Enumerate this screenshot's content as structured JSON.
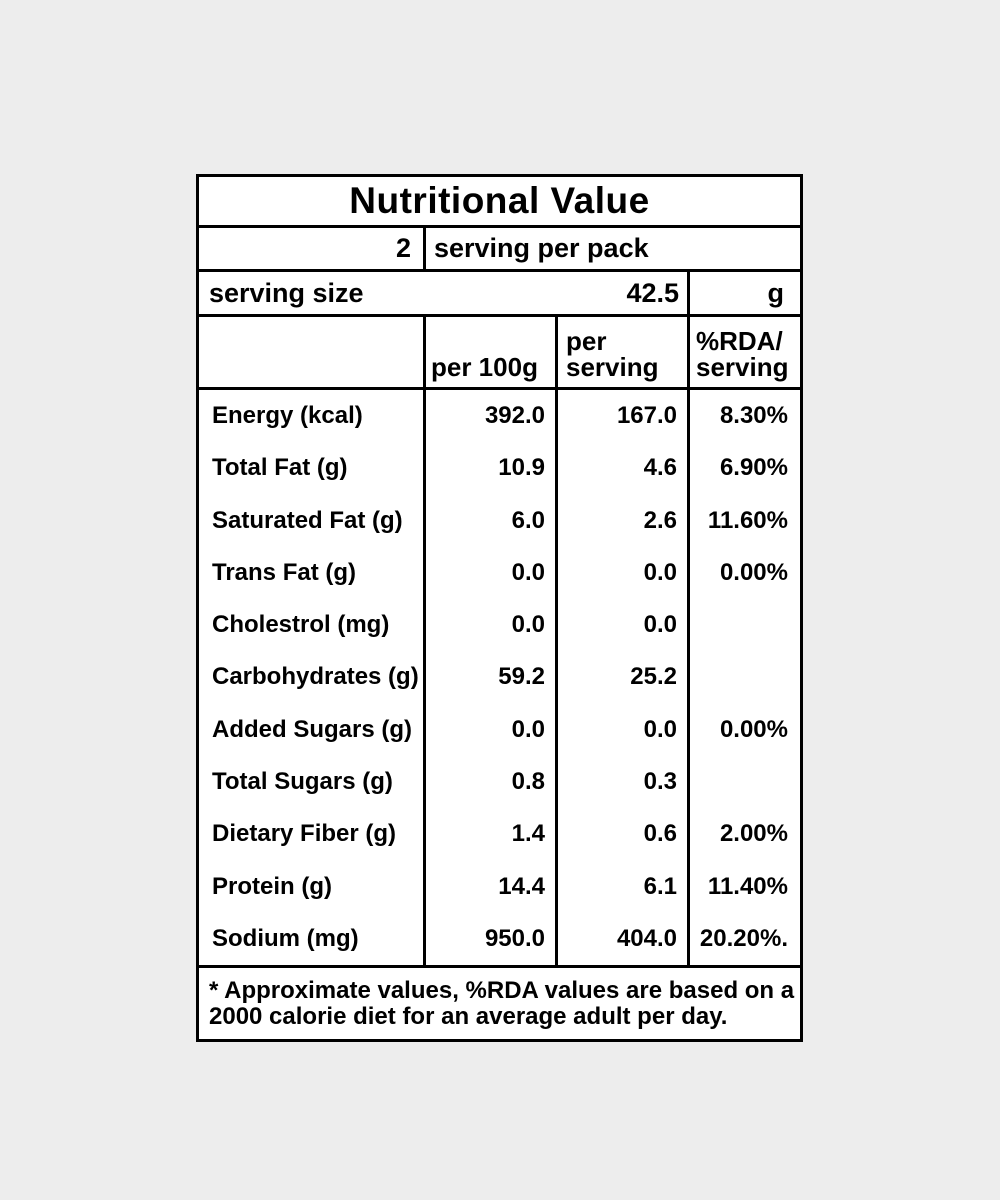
{
  "colors": {
    "background": "#ededed",
    "table_background": "#ffffff",
    "border": "#000000",
    "text": "#000000"
  },
  "label": {
    "title": "Nutritional Value",
    "pack": {
      "count": "2",
      "text": "serving per pack"
    },
    "serving_size": {
      "text": "serving size",
      "value": "42.5",
      "unit": "g"
    },
    "columns": {
      "per_100g": "per 100g",
      "per_serving_line1": "per",
      "per_serving_line2": "serving",
      "rda_line1": "%RDA/",
      "rda_line2": "serving"
    },
    "rows": [
      {
        "name": "Energy (kcal)",
        "per_100g": "392.0",
        "per_serving": "167.0",
        "rda": "8.30%"
      },
      {
        "name": "Total Fat (g)",
        "per_100g": "10.9",
        "per_serving": "4.6",
        "rda": "6.90%"
      },
      {
        "name": "Saturated Fat (g)",
        "per_100g": "6.0",
        "per_serving": "2.6",
        "rda": "11.60%"
      },
      {
        "name": "Trans Fat (g)",
        "per_100g": "0.0",
        "per_serving": "0.0",
        "rda": "0.00%"
      },
      {
        "name": "Cholestrol (mg)",
        "per_100g": "0.0",
        "per_serving": "0.0",
        "rda": ""
      },
      {
        "name": "Carbohydrates (g)",
        "per_100g": "59.2",
        "per_serving": "25.2",
        "rda": ""
      },
      {
        "name": "Added Sugars (g)",
        "per_100g": "0.0",
        "per_serving": "0.0",
        "rda": "0.00%"
      },
      {
        "name": "Total Sugars (g)",
        "per_100g": "0.8",
        "per_serving": "0.3",
        "rda": ""
      },
      {
        "name": "Dietary Fiber (g)",
        "per_100g": "1.4",
        "per_serving": "0.6",
        "rda": "2.00%"
      },
      {
        "name": "Protein (g)",
        "per_100g": "14.4",
        "per_serving": "6.1",
        "rda": "11.40%"
      },
      {
        "name": "Sodium (mg)",
        "per_100g": "950.0",
        "per_serving": "404.0",
        "rda": "20.20%."
      }
    ],
    "footnote_line1": "* Approximate values, %RDA values are based on a",
    "footnote_line2": "2000 calorie diet for an average adult per day."
  }
}
